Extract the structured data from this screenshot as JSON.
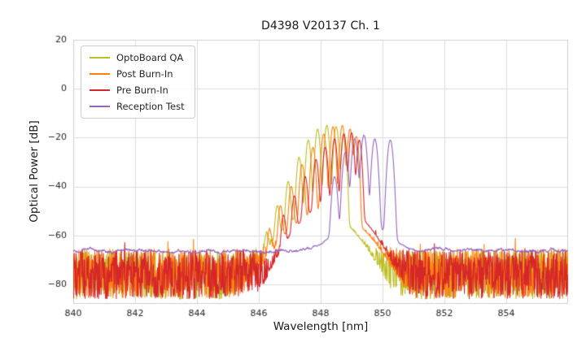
{
  "chart_data": {
    "type": "line",
    "title": "D4398 V20137 Ch. 1",
    "xlabel": "Wavelength [nm]",
    "ylabel": "Optical Power [dB]",
    "xlim": [
      840,
      856
    ],
    "ylim": [
      -88,
      20
    ],
    "xticks": [
      840,
      842,
      844,
      846,
      848,
      850,
      852,
      854
    ],
    "xtick_labels": [
      "840",
      "842",
      "844",
      "846",
      "848",
      "850",
      "852",
      "854"
    ],
    "yticks": [
      20,
      0,
      -20,
      -40,
      -60,
      -80
    ],
    "ytick_labels": [
      "20",
      "0",
      "−20",
      "−40",
      "−60",
      "−80"
    ],
    "grid": true,
    "grid_color": "#dcdcdc",
    "spine_color": "#d0d0d0",
    "text_color": "#262626",
    "legend_position": "upper left",
    "seed": 42,
    "sample_step_nm": 0.012,
    "series": [
      {
        "name": "OptoBoard QA",
        "color": "#bcbd22",
        "noise_type": "spiky",
        "noise_floor_db": -76,
        "noise_amplitude_db": 10,
        "mode_sigma_nm": 0.06,
        "modes": [
          [
            846.25,
            -60
          ],
          [
            846.6,
            -48
          ],
          [
            846.95,
            -38
          ],
          [
            847.3,
            -28
          ],
          [
            847.6,
            -21
          ],
          [
            847.9,
            -16.5
          ],
          [
            848.2,
            -15
          ],
          [
            848.5,
            -15.5
          ],
          [
            848.75,
            -18.5
          ],
          [
            847.9,
            -50,
            0.85
          ]
        ]
      },
      {
        "name": "Post Burn-In",
        "color": "#ff7f0e",
        "noise_type": "spiky",
        "noise_floor_db": -75.5,
        "noise_amplitude_db": 10,
        "mode_sigma_nm": 0.06,
        "modes": [
          [
            846.35,
            -58
          ],
          [
            846.7,
            -48
          ],
          [
            847.05,
            -40
          ],
          [
            847.4,
            -31
          ],
          [
            847.75,
            -24
          ],
          [
            848.1,
            -18.5
          ],
          [
            848.4,
            -15.5
          ],
          [
            848.7,
            -15
          ],
          [
            848.95,
            -16.5
          ],
          [
            849.15,
            -19.5
          ],
          [
            848.2,
            -50,
            0.9
          ]
        ]
      },
      {
        "name": "Pre Burn-In",
        "color": "#d62728",
        "noise_type": "spiky",
        "noise_floor_db": -76,
        "noise_amplitude_db": 10,
        "mode_sigma_nm": 0.06,
        "modes": [
          [
            846.8,
            -52
          ],
          [
            847.15,
            -44
          ],
          [
            847.5,
            -36
          ],
          [
            847.85,
            -29
          ],
          [
            848.15,
            -24
          ],
          [
            848.45,
            -20.5
          ],
          [
            848.75,
            -18.5
          ],
          [
            849.0,
            -18
          ],
          [
            849.25,
            -21
          ],
          [
            848.4,
            -47,
            0.8
          ]
        ]
      },
      {
        "name": "Reception Test",
        "color": "#9467bd",
        "noise_type": "smooth",
        "noise_floor_db": -66.3,
        "noise_amplitude_db": 0.8,
        "mode_sigma_nm": 0.07,
        "modes": [
          [
            848.45,
            -36
          ],
          [
            848.8,
            -26
          ],
          [
            849.1,
            -20.5
          ],
          [
            849.4,
            -19
          ],
          [
            849.75,
            -20.5
          ],
          [
            850.25,
            -21
          ],
          [
            849.3,
            -55,
            0.8
          ]
        ]
      }
    ]
  }
}
